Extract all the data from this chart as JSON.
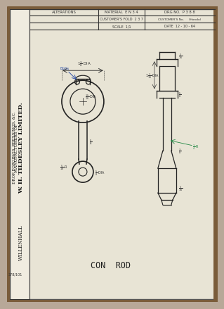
{
  "bg_color": "#b8a898",
  "paper_color": "#e8e4d5",
  "sidebar_color": "#f0ece0",
  "border_color": "#333333",
  "title_text": "CON  ROD",
  "sidebar_text1": "W. H. TILDESLEY LIMITED.",
  "sidebar_text2": "MANUFACTURERS OF",
  "sidebar_text3": "DROP FORGINGS, PRESSINGS, &C.",
  "sidebar_text4": "WILLENHALL",
  "sidebar_ref": "378/101",
  "header_alterations": "ALTERATIONS",
  "header_material": "MATERIAL  E N 3 4",
  "header_drg_no": "DRG NO.  P 3 8 8",
  "header_cust_fol": "CUSTOMER'S FOLD  2 3 7",
  "header_cust_no": "CUSTOMER'S No.     (Honda)",
  "header_scale": "SCALE  1/1",
  "header_date": "DATE  12 - 10 - 64",
  "line_color": "#222222",
  "dim_color": "#333333",
  "blue_color": "#3355aa",
  "green_color": "#228844"
}
